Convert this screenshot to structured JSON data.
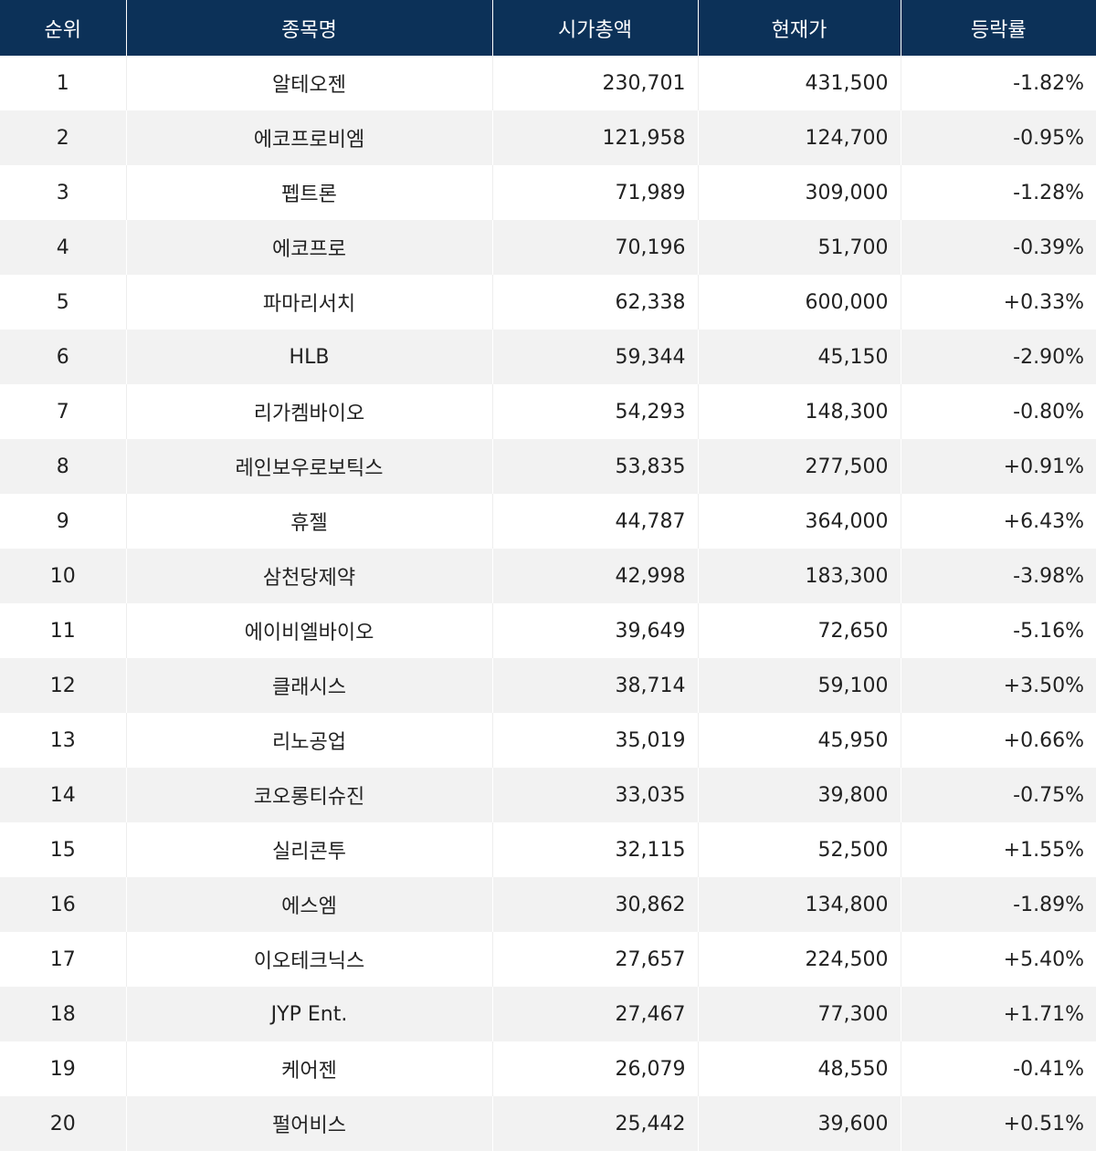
{
  "headers": {
    "rank": "순위",
    "name": "종목명",
    "market_cap": "시가총액",
    "price": "현재가",
    "change": "등락률"
  },
  "rows": [
    {
      "rank": "1",
      "name": "알테오젠",
      "market_cap": "230,701",
      "price": "431,500",
      "change": "-1.82%"
    },
    {
      "rank": "2",
      "name": "에코프로비엠",
      "market_cap": "121,958",
      "price": "124,700",
      "change": "-0.95%"
    },
    {
      "rank": "3",
      "name": "펩트론",
      "market_cap": "71,989",
      "price": "309,000",
      "change": "-1.28%"
    },
    {
      "rank": "4",
      "name": "에코프로",
      "market_cap": "70,196",
      "price": "51,700",
      "change": "-0.39%"
    },
    {
      "rank": "5",
      "name": "파마리서치",
      "market_cap": "62,338",
      "price": "600,000",
      "change": "+0.33%"
    },
    {
      "rank": "6",
      "name": "HLB",
      "market_cap": "59,344",
      "price": "45,150",
      "change": "-2.90%"
    },
    {
      "rank": "7",
      "name": "리가켐바이오",
      "market_cap": "54,293",
      "price": "148,300",
      "change": "-0.80%"
    },
    {
      "rank": "8",
      "name": "레인보우로보틱스",
      "market_cap": "53,835",
      "price": "277,500",
      "change": "+0.91%"
    },
    {
      "rank": "9",
      "name": "휴젤",
      "market_cap": "44,787",
      "price": "364,000",
      "change": "+6.43%"
    },
    {
      "rank": "10",
      "name": "삼천당제약",
      "market_cap": "42,998",
      "price": "183,300",
      "change": "-3.98%"
    },
    {
      "rank": "11",
      "name": "에이비엘바이오",
      "market_cap": "39,649",
      "price": "72,650",
      "change": "-5.16%"
    },
    {
      "rank": "12",
      "name": "클래시스",
      "market_cap": "38,714",
      "price": "59,100",
      "change": "+3.50%"
    },
    {
      "rank": "13",
      "name": "리노공업",
      "market_cap": "35,019",
      "price": "45,950",
      "change": "+0.66%"
    },
    {
      "rank": "14",
      "name": "코오롱티슈진",
      "market_cap": "33,035",
      "price": "39,800",
      "change": "-0.75%"
    },
    {
      "rank": "15",
      "name": "실리콘투",
      "market_cap": "32,115",
      "price": "52,500",
      "change": "+1.55%"
    },
    {
      "rank": "16",
      "name": "에스엠",
      "market_cap": "30,862",
      "price": "134,800",
      "change": "-1.89%"
    },
    {
      "rank": "17",
      "name": "이오테크닉스",
      "market_cap": "27,657",
      "price": "224,500",
      "change": "+5.40%"
    },
    {
      "rank": "18",
      "name": "JYP Ent.",
      "market_cap": "27,467",
      "price": "77,300",
      "change": "+1.71%"
    },
    {
      "rank": "19",
      "name": "케어젠",
      "market_cap": "26,079",
      "price": "48,550",
      "change": "-0.41%"
    },
    {
      "rank": "20",
      "name": "펄어비스",
      "market_cap": "25,442",
      "price": "39,600",
      "change": "+0.51%"
    }
  ],
  "colors": {
    "header_bg": "#0c3158",
    "header_text": "#ffffff",
    "row_alt_bg": "#f2f2f2",
    "text": "#222222"
  }
}
